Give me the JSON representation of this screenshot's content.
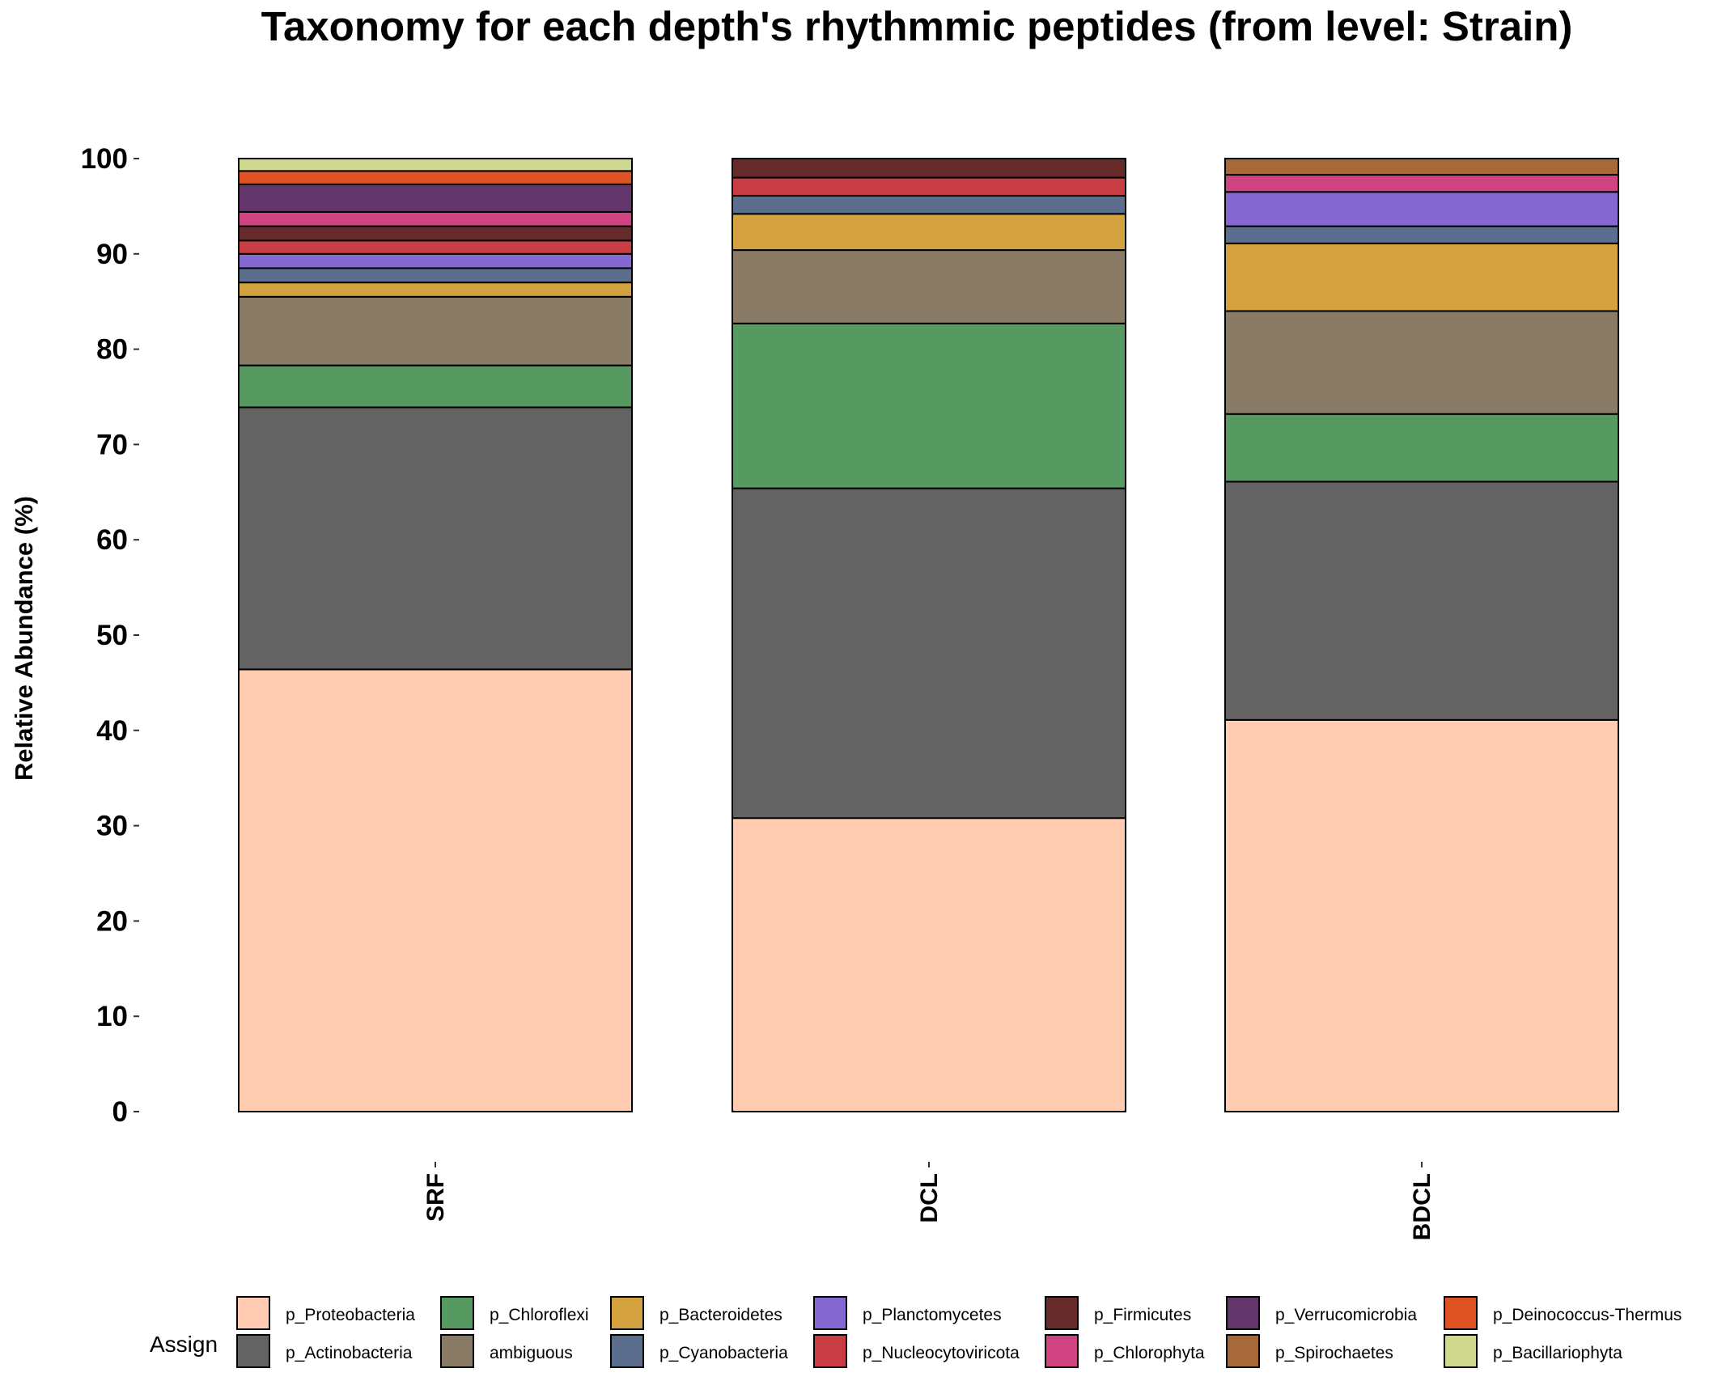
{
  "chart_data": {
    "type": "bar",
    "stacked": true,
    "title": "Taxonomy for each depth's rhythmmic peptides (from level: Strain)",
    "xlabel": "",
    "ylabel": "Relative Abundance (%)",
    "ylim": [
      0,
      100
    ],
    "yticks": [
      "0",
      "10",
      "20",
      "30",
      "40",
      "50",
      "60",
      "70",
      "80",
      "90",
      "100"
    ],
    "categories": [
      "SRF",
      "DCL",
      "BDCL"
    ],
    "grid": false,
    "legend_title": "Assign",
    "legend_position": "bottom",
    "series": [
      {
        "name": "p_Proteobacteria",
        "color": "#FFCCB1",
        "values": [
          46.4,
          30.8,
          41.1
        ]
      },
      {
        "name": "p_Actinobacteria",
        "color": "#636363",
        "values": [
          27.5,
          34.6,
          25.0
        ]
      },
      {
        "name": "p_Chloroflexi",
        "color": "#569A62",
        "values": [
          4.4,
          17.3,
          7.1
        ]
      },
      {
        "name": "ambiguous",
        "color": "#8A7B66",
        "values": [
          7.2,
          7.7,
          10.8
        ]
      },
      {
        "name": "p_Bacteroidetes",
        "color": "#D3A23E",
        "values": [
          1.5,
          3.8,
          7.1
        ]
      },
      {
        "name": "p_Cyanobacteria",
        "color": "#5B6E8D",
        "values": [
          1.5,
          1.9,
          1.8
        ]
      },
      {
        "name": "p_Planctomycetes",
        "color": "#8668D3",
        "values": [
          1.5,
          0,
          3.6
        ]
      },
      {
        "name": "p_Nucleocytoviricota",
        "color": "#C93D45",
        "values": [
          1.4,
          1.9,
          0
        ]
      },
      {
        "name": "p_Firmicutes",
        "color": "#662A2A",
        "values": [
          1.5,
          2.0,
          0
        ]
      },
      {
        "name": "p_Chlorophyta",
        "color": "#D04381",
        "values": [
          1.5,
          0,
          1.8
        ]
      },
      {
        "name": "p_Verrucomicrobia",
        "color": "#63366B",
        "values": [
          2.9,
          0,
          0
        ]
      },
      {
        "name": "p_Spirochaetes",
        "color": "#A8693A",
        "values": [
          0,
          0,
          1.7
        ]
      },
      {
        "name": "p_Deinococcus-Thermus",
        "color": "#DE5224",
        "values": [
          1.4,
          0,
          0
        ]
      },
      {
        "name": "p_Bacillariophyta",
        "color": "#CFD88D",
        "values": [
          1.3,
          0,
          0
        ]
      }
    ],
    "legend_order": [
      "p_Proteobacteria",
      "p_Actinobacteria",
      "p_Chloroflexi",
      "ambiguous",
      "p_Bacteroidetes",
      "p_Cyanobacteria",
      "p_Planctomycetes",
      "p_Nucleocytoviricota",
      "p_Firmicutes",
      "p_Chlorophyta",
      "p_Verrucomicrobia",
      "p_Spirochaetes",
      "p_Deinococcus-Thermus",
      "p_Bacillariophyta"
    ]
  }
}
